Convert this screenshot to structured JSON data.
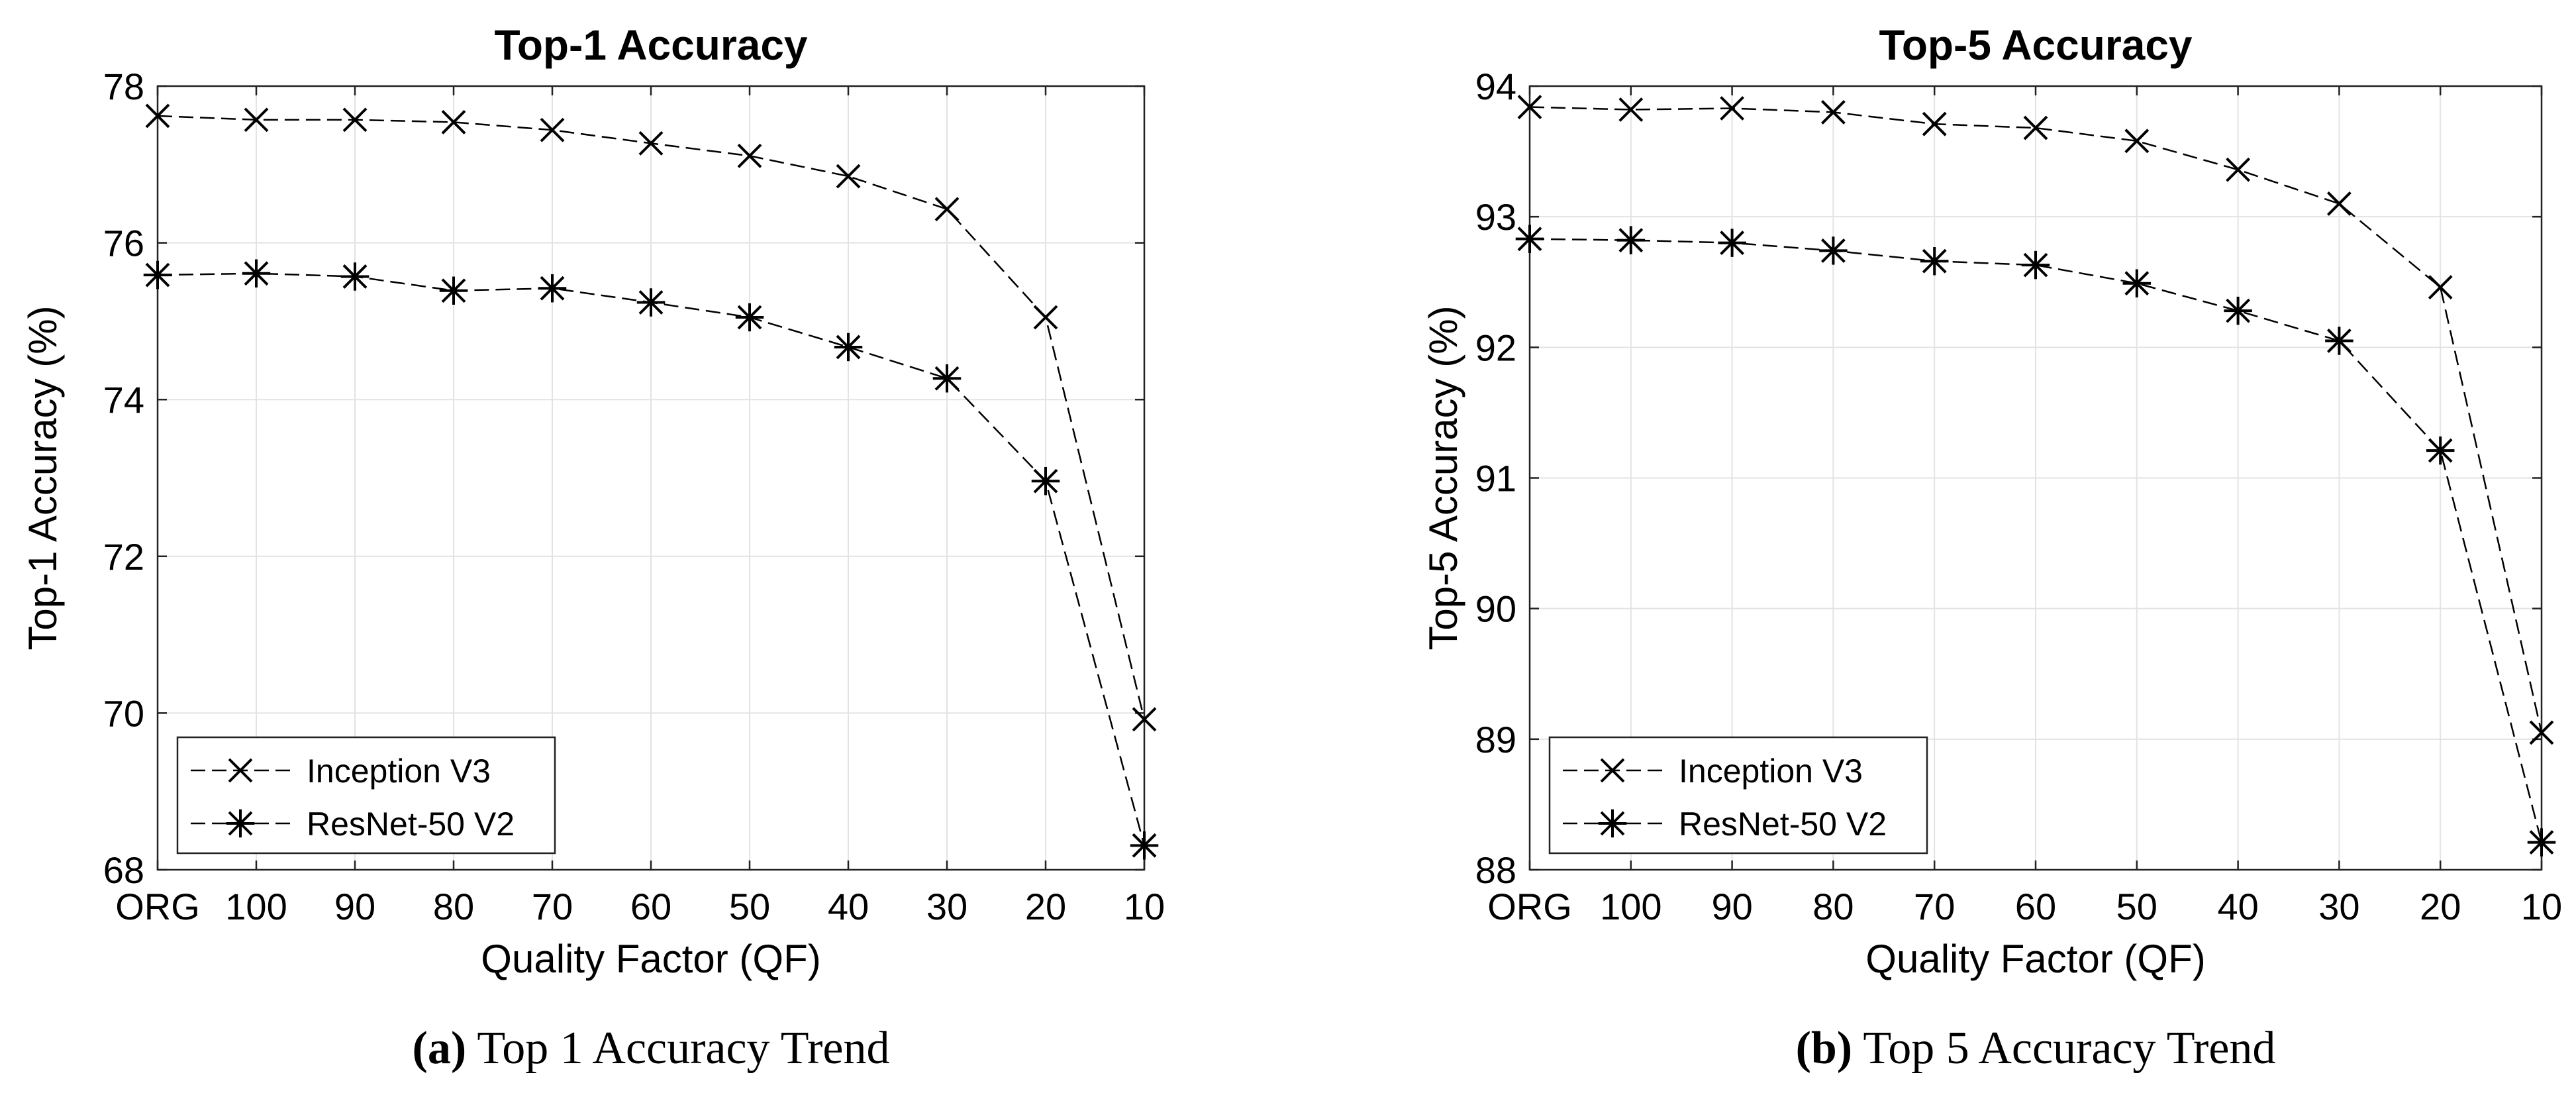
{
  "chart_data": [
    {
      "type": "line",
      "title": "Top-1 Accuracy",
      "xlabel": "Quality Factor (QF)",
      "ylabel": "Top-1 Accuracy (%)",
      "categories": [
        "ORG",
        "100",
        "90",
        "80",
        "70",
        "60",
        "50",
        "40",
        "30",
        "20",
        "10"
      ],
      "ylim": [
        68,
        78
      ],
      "yticks": [
        "68",
        "70",
        "72",
        "74",
        "76",
        "78"
      ],
      "grid": true,
      "legend_position": "bottom-left",
      "series": [
        {
          "name": "Inception V3",
          "marker": "x",
          "values": [
            77.62,
            77.57,
            77.57,
            77.54,
            77.44,
            77.27,
            77.11,
            76.85,
            76.43,
            75.05,
            69.92
          ]
        },
        {
          "name": "ResNet-50 V2",
          "marker": "star",
          "values": [
            75.59,
            75.61,
            75.57,
            75.39,
            75.42,
            75.24,
            75.05,
            74.67,
            74.27,
            72.96,
            68.31
          ]
        }
      ],
      "caption_letter": "(a)",
      "caption_text": " Top 1 Accuracy Trend"
    },
    {
      "type": "line",
      "title": "Top-5 Accuracy",
      "xlabel": "Quality Factor (QF)",
      "ylabel": "Top-5 Accuracy (%)",
      "categories": [
        "ORG",
        "100",
        "90",
        "80",
        "70",
        "60",
        "50",
        "40",
        "30",
        "20",
        "10"
      ],
      "ylim": [
        88,
        94
      ],
      "yticks": [
        "88",
        "89",
        "90",
        "91",
        "92",
        "93",
        "94"
      ],
      "grid": true,
      "legend_position": "bottom-left",
      "series": [
        {
          "name": "Inception V3",
          "marker": "x",
          "values": [
            93.84,
            93.82,
            93.83,
            93.8,
            93.71,
            93.68,
            93.58,
            93.36,
            93.1,
            92.46,
            89.05
          ]
        },
        {
          "name": "ResNet-50 V2",
          "marker": "star",
          "values": [
            92.83,
            92.82,
            92.8,
            92.74,
            92.66,
            92.63,
            92.49,
            92.28,
            92.05,
            91.21,
            88.21
          ]
        }
      ],
      "caption_letter": "(b)",
      "caption_text": " Top 5 Accuracy Trend"
    }
  ]
}
